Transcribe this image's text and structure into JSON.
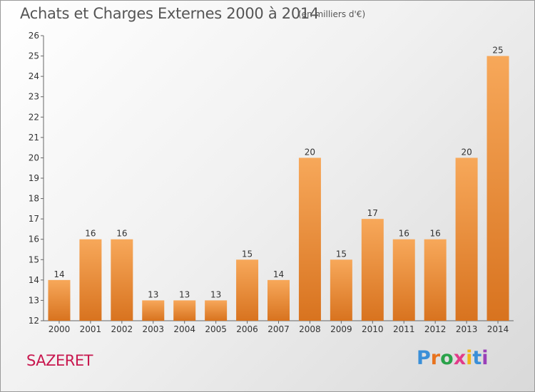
{
  "header": {
    "title": "Achats et Charges Externes 2000 à 2014",
    "subtitle": "(en milliers d'€)"
  },
  "footer": {
    "commune": "SAZERET",
    "logo": "Proxiti",
    "logo_colors": [
      "#3a8fd8",
      "#e8731e",
      "#2aa24a",
      "#e23b8a",
      "#f2b418",
      "#3a8fd8",
      "#9a3fb8"
    ]
  },
  "chart_data": {
    "type": "bar",
    "title": "Achats et Charges Externes 2000 à 2014",
    "subtitle": "(en milliers d'€)",
    "categories": [
      "2000",
      "2001",
      "2002",
      "2003",
      "2004",
      "2005",
      "2006",
      "2007",
      "2008",
      "2009",
      "2010",
      "2011",
      "2012",
      "2013",
      "2014"
    ],
    "values": [
      14,
      16,
      16,
      13,
      13,
      13,
      15,
      14,
      20,
      15,
      17,
      16,
      16,
      20,
      25
    ],
    "ylim": [
      12,
      26
    ],
    "yticks": [
      12,
      13,
      14,
      15,
      16,
      17,
      18,
      19,
      20,
      21,
      22,
      23,
      24,
      25,
      26
    ],
    "grid": false,
    "bar_color": "#f0913a",
    "bar_color_dark": "#d4701f"
  }
}
